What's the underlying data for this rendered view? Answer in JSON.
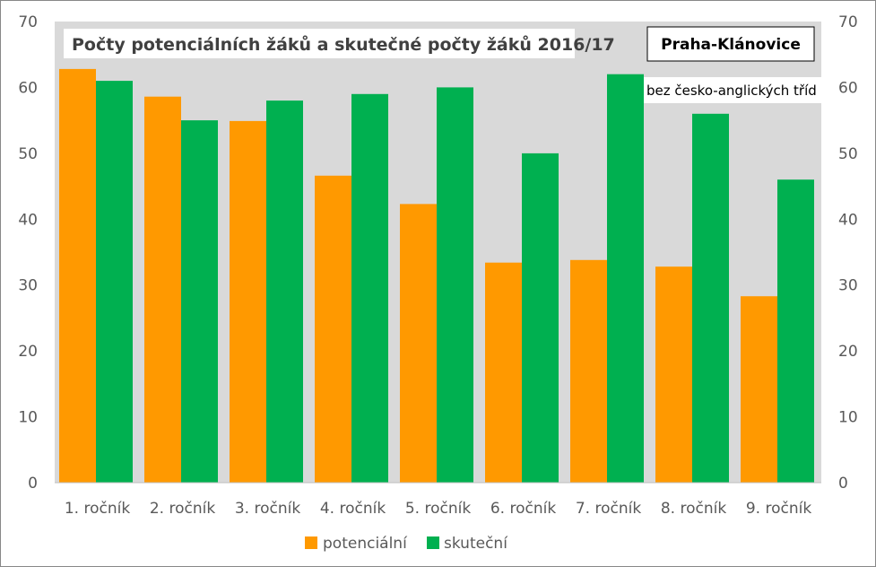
{
  "chart_data": {
    "type": "bar",
    "title": "Počty potenciálních žáků a skutečné počty žáků 2016/17",
    "location_label": "Praha-Klánovice",
    "note": "bez česko-anglických tříd",
    "categories": [
      "1. ročník",
      "2. ročník",
      "3. ročník",
      "4. ročník",
      "5. ročník",
      "6. ročník",
      "7. ročník",
      "8. ročník",
      "9. ročník"
    ],
    "series": [
      {
        "name": "potenciální",
        "color": "#FF9900",
        "values": [
          62.8,
          58.6,
          54.9,
          46.6,
          42.3,
          33.4,
          33.8,
          32.8,
          28.3
        ]
      },
      {
        "name": "skuteční",
        "color": "#00B050",
        "values": [
          61,
          55,
          58,
          59,
          60,
          50,
          62,
          56,
          46
        ]
      }
    ],
    "ylim": [
      0,
      70
    ],
    "yticks": [
      "0",
      "10",
      "20",
      "30",
      "40",
      "50",
      "60",
      "70"
    ],
    "xlabel": "",
    "ylabel": "",
    "grid": false,
    "secondary_axis": true,
    "plot_background": "#D9D9D9",
    "legend_position": "bottom"
  }
}
